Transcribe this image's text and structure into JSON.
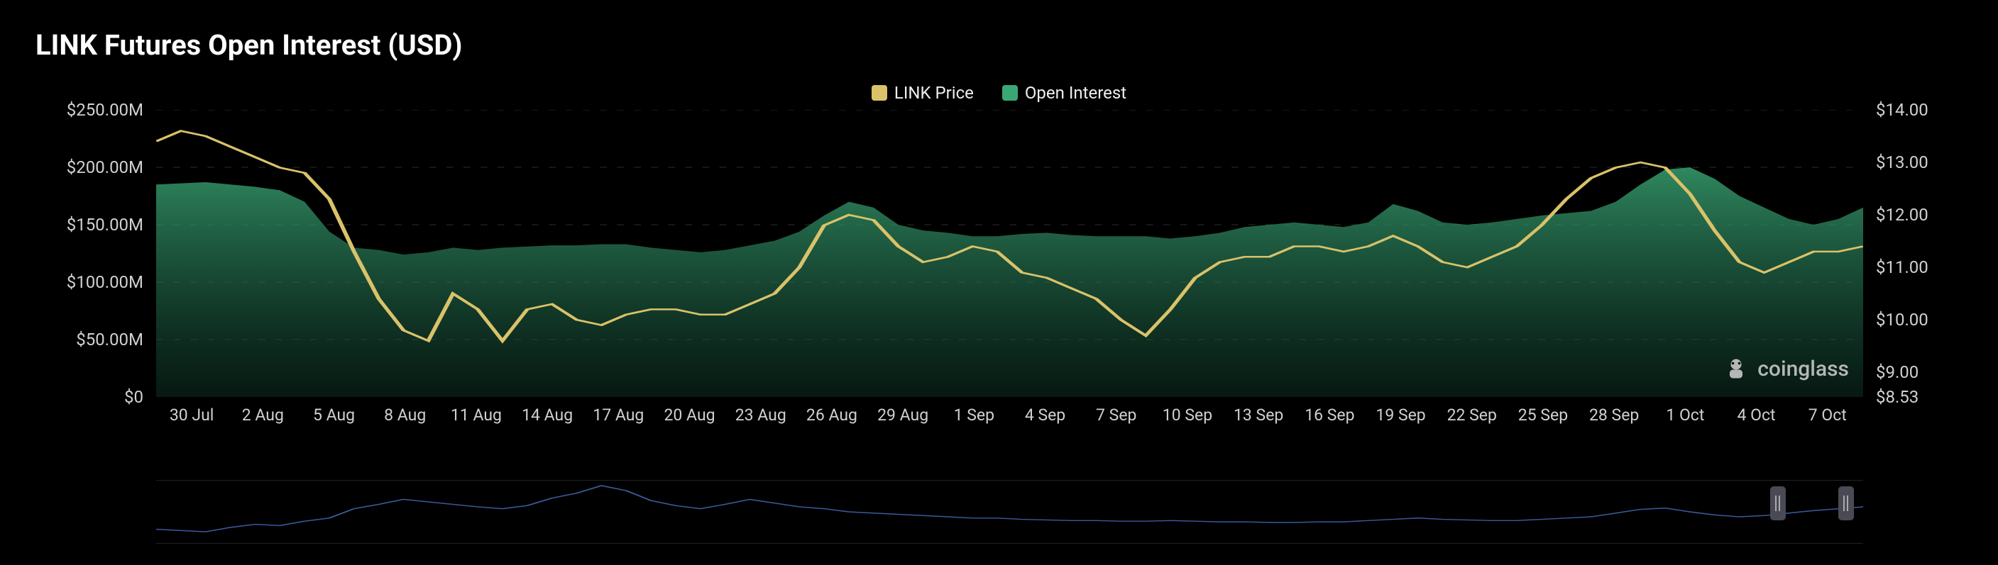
{
  "title": "LINK Futures Open Interest (USD)",
  "legend": {
    "price": {
      "label": "LINK Price",
      "color": "#d9c26a"
    },
    "oi": {
      "label": "Open Interest",
      "color": "#3aa876"
    }
  },
  "watermark": "coinglass",
  "chart": {
    "type": "area+line",
    "background": "#000000",
    "grid_color": "#555555",
    "axis_text_color": "#d0d0d0",
    "axis_fontsize": 24,
    "title_fontsize": 40,
    "legend_fontsize": 24,
    "y_left": {
      "min": 0,
      "max": 250,
      "ticks": [
        {
          "v": 250,
          "label": "$250.00M"
        },
        {
          "v": 200,
          "label": "$200.00M"
        },
        {
          "v": 150,
          "label": "$150.00M"
        },
        {
          "v": 100,
          "label": "$100.00M"
        },
        {
          "v": 50,
          "label": "$50.00M"
        },
        {
          "v": 0,
          "label": "$0"
        }
      ]
    },
    "y_right": {
      "min": 8.53,
      "max": 14,
      "ticks": [
        {
          "v": 14,
          "label": "$14.00"
        },
        {
          "v": 13,
          "label": "$13.00"
        },
        {
          "v": 12,
          "label": "$12.00"
        },
        {
          "v": 11,
          "label": "$11.00"
        },
        {
          "v": 10,
          "label": "$10.00"
        },
        {
          "v": 9,
          "label": "$9.00"
        },
        {
          "v": 8.53,
          "label": "$8.53"
        }
      ]
    },
    "x_labels": [
      "30 Jul",
      "2 Aug",
      "5 Aug",
      "8 Aug",
      "11 Aug",
      "14 Aug",
      "17 Aug",
      "20 Aug",
      "23 Aug",
      "26 Aug",
      "29 Aug",
      "1 Sep",
      "4 Sep",
      "7 Sep",
      "10 Sep",
      "13 Sep",
      "16 Sep",
      "19 Sep",
      "22 Sep",
      "25 Sep",
      "28 Sep",
      "1 Oct",
      "4 Oct",
      "7 Oct"
    ],
    "n_points": 70,
    "open_interest": {
      "color_top": "#3aa876",
      "color_bottom": "#0f3a2a",
      "fill_opacity": 0.85,
      "values": [
        185,
        186,
        187,
        185,
        183,
        180,
        170,
        144,
        130,
        128,
        124,
        126,
        130,
        128,
        130,
        131,
        132,
        132,
        133,
        133,
        130,
        128,
        126,
        128,
        132,
        136,
        144,
        158,
        170,
        165,
        150,
        145,
        143,
        140,
        140,
        142,
        143,
        141,
        140,
        140,
        140,
        138,
        140,
        143,
        148,
        150,
        152,
        150,
        148,
        152,
        168,
        162,
        152,
        150,
        152,
        155,
        158,
        160,
        162,
        170,
        185,
        198,
        200,
        190,
        175,
        165,
        155,
        150,
        155,
        165
      ]
    },
    "price": {
      "color": "#d9c26a",
      "line_width": 2.5,
      "values": [
        13.4,
        13.6,
        13.5,
        13.3,
        13.1,
        12.9,
        12.8,
        12.3,
        11.3,
        10.4,
        9.8,
        9.6,
        10.5,
        10.2,
        9.6,
        10.2,
        10.3,
        10.0,
        9.9,
        10.1,
        10.2,
        10.2,
        10.1,
        10.1,
        10.3,
        10.5,
        11.0,
        11.8,
        12.0,
        11.9,
        11.4,
        11.1,
        11.2,
        11.4,
        11.3,
        10.9,
        10.8,
        10.6,
        10.4,
        10.0,
        9.7,
        10.2,
        10.8,
        11.1,
        11.2,
        11.2,
        11.4,
        11.4,
        11.3,
        11.4,
        11.6,
        11.4,
        11.1,
        11.0,
        11.2,
        11.4,
        11.8,
        12.3,
        12.7,
        12.9,
        13.0,
        12.9,
        12.4,
        11.7,
        11.1,
        10.9,
        11.1,
        11.3,
        11.3,
        11.4
      ]
    },
    "brush": {
      "line_color": "#3a5a9a",
      "values": [
        22,
        20,
        18,
        25,
        30,
        28,
        35,
        40,
        55,
        62,
        70,
        66,
        62,
        58,
        55,
        60,
        72,
        80,
        92,
        84,
        68,
        60,
        55,
        62,
        70,
        64,
        58,
        55,
        50,
        48,
        46,
        44,
        42,
        40,
        40,
        38,
        37,
        36,
        36,
        35,
        35,
        36,
        35,
        34,
        34,
        33,
        33,
        34,
        34,
        36,
        38,
        40,
        38,
        37,
        36,
        36,
        38,
        40,
        42,
        48,
        54,
        56,
        50,
        45,
        42,
        44,
        48,
        52,
        55,
        58
      ],
      "max": 100,
      "handle_positions_pct": [
        95,
        99
      ]
    }
  }
}
